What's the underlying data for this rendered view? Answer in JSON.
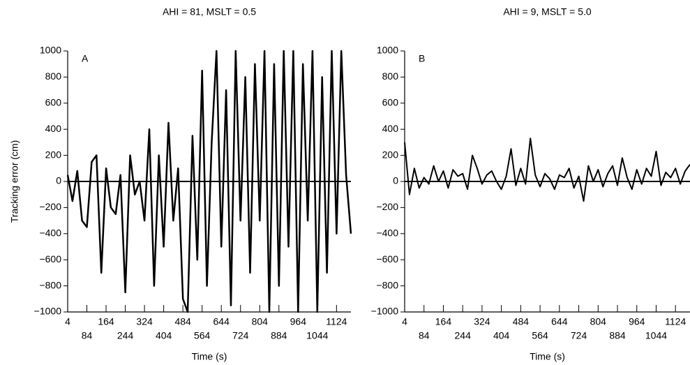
{
  "chart_data": [
    {
      "type": "line",
      "title": "AHI = 81, MSLT = 0.5",
      "panel_label": "A",
      "y_label": "Tracking error (cm)",
      "x_label": "Time (s)",
      "x": [
        4,
        24,
        44,
        64,
        84,
        104,
        124,
        144,
        164,
        184,
        204,
        224,
        244,
        264,
        284,
        304,
        324,
        344,
        364,
        384,
        404,
        424,
        444,
        464,
        484,
        504,
        524,
        544,
        564,
        584,
        604,
        624,
        644,
        664,
        684,
        704,
        724,
        744,
        764,
        784,
        804,
        824,
        844,
        864,
        884,
        904,
        924,
        944,
        964,
        984,
        1004,
        1024,
        1044,
        1064,
        1084,
        1104,
        1124,
        1144,
        1164,
        1184
      ],
      "series": [
        {
          "color": "#000000",
          "values": [
            50,
            -150,
            80,
            -300,
            -350,
            150,
            200,
            -700,
            100,
            -200,
            -250,
            50,
            -850,
            200,
            -100,
            0,
            -300,
            400,
            -800,
            200,
            -500,
            450,
            -300,
            100,
            -900,
            -1000,
            350,
            -600,
            850,
            -800,
            300,
            1000,
            -500,
            700,
            -950,
            1000,
            -300,
            800,
            -700,
            900,
            -300,
            1000,
            -1000,
            900,
            -800,
            1000,
            -500,
            1000,
            -1000,
            900,
            -300,
            1000,
            -1000,
            800,
            -700,
            1000,
            -400,
            1000,
            50,
            -400
          ]
        }
      ],
      "hline": 0,
      "xlim": [
        4,
        1184
      ],
      "ylim": [
        -1000,
        1000
      ],
      "xticks": [
        4,
        84,
        164,
        244,
        324,
        404,
        484,
        564,
        644,
        724,
        804,
        884,
        964,
        1044,
        1124
      ],
      "yticks": [
        {
          "value": -1000,
          "label": "−1000"
        },
        {
          "value": -800,
          "label": "−800"
        },
        {
          "value": -600,
          "label": "−600"
        },
        {
          "value": -400,
          "label": "−400"
        },
        {
          "value": -200,
          "label": "−200"
        },
        0,
        200,
        400,
        600,
        800,
        1000
      ]
    },
    {
      "type": "line",
      "title": "AHI = 9, MSLT = 5.0",
      "panel_label": "B",
      "x_label": "Time (s)",
      "x": [
        4,
        24,
        44,
        64,
        84,
        104,
        124,
        144,
        164,
        184,
        204,
        224,
        244,
        264,
        284,
        304,
        324,
        344,
        364,
        384,
        404,
        424,
        444,
        464,
        484,
        504,
        524,
        544,
        564,
        584,
        604,
        624,
        644,
        664,
        684,
        704,
        724,
        744,
        764,
        784,
        804,
        824,
        844,
        864,
        884,
        904,
        924,
        944,
        964,
        984,
        1004,
        1024,
        1044,
        1064,
        1084,
        1104,
        1124,
        1144,
        1164,
        1184
      ],
      "series": [
        {
          "color": "#000000",
          "values": [
            300,
            -100,
            100,
            -50,
            30,
            -20,
            120,
            0,
            80,
            -50,
            90,
            40,
            60,
            -60,
            200,
            100,
            -20,
            50,
            80,
            0,
            -60,
            40,
            250,
            -30,
            100,
            -20,
            330,
            50,
            -40,
            60,
            20,
            -60,
            50,
            30,
            100,
            -50,
            40,
            -150,
            120,
            0,
            90,
            -40,
            60,
            120,
            -30,
            180,
            30,
            -60,
            90,
            -20,
            100,
            40,
            230,
            -30,
            70,
            30,
            100,
            -20,
            80,
            130
          ]
        }
      ],
      "hline": 0,
      "xlim": [
        4,
        1184
      ],
      "ylim": [
        -1000,
        1000
      ],
      "xticks": [
        4,
        84,
        164,
        244,
        324,
        404,
        484,
        564,
        644,
        724,
        804,
        884,
        964,
        1044,
        1124
      ],
      "yticks": [
        {
          "value": -1000,
          "label": "−1000"
        },
        {
          "value": -800,
          "label": "−800"
        },
        {
          "value": -600,
          "label": "−600"
        },
        {
          "value": -400,
          "label": "−400"
        },
        {
          "value": -200,
          "label": "−200"
        },
        0,
        200,
        400,
        600,
        800,
        1000
      ]
    }
  ]
}
